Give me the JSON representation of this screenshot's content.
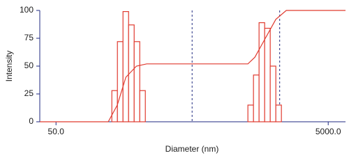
{
  "chart_data": {
    "type": "histogram",
    "x_label": "Diameter (nm)",
    "y_label": "Intensity",
    "xlog": true,
    "xlim": [
      38,
      6700
    ],
    "ylim": [
      0,
      100
    ],
    "xticks": [
      {
        "value": 50,
        "label": "50.0"
      },
      {
        "value": 5000,
        "label": "5000.0"
      }
    ],
    "yticks": [
      0,
      25,
      50,
      75,
      100
    ],
    "vlines": [
      500,
      2200
    ],
    "axis_color": "#1f2a80",
    "series": [
      {
        "color": "#e03a2f",
        "bins": [
          128.6,
          141.3,
          155.3,
          170.7,
          187.6,
          206.2,
          226.6
        ],
        "values": [
          28,
          72,
          99,
          87,
          72,
          28
        ]
      },
      {
        "color": "#e03a2f",
        "bins": [
          1285,
          1412,
          1552,
          1706,
          1875,
          2061,
          2265
        ],
        "values": [
          15,
          42,
          89,
          84,
          50,
          15
        ]
      }
    ],
    "cumulative": {
      "color": "#e03a2f",
      "x": [
        38,
        121,
        141,
        163,
        195,
        232,
        1285,
        1446,
        1726,
        2061,
        2460,
        6700
      ],
      "values": [
        0,
        0,
        15,
        40,
        50,
        52,
        52,
        58,
        75,
        92,
        100,
        100
      ]
    }
  }
}
